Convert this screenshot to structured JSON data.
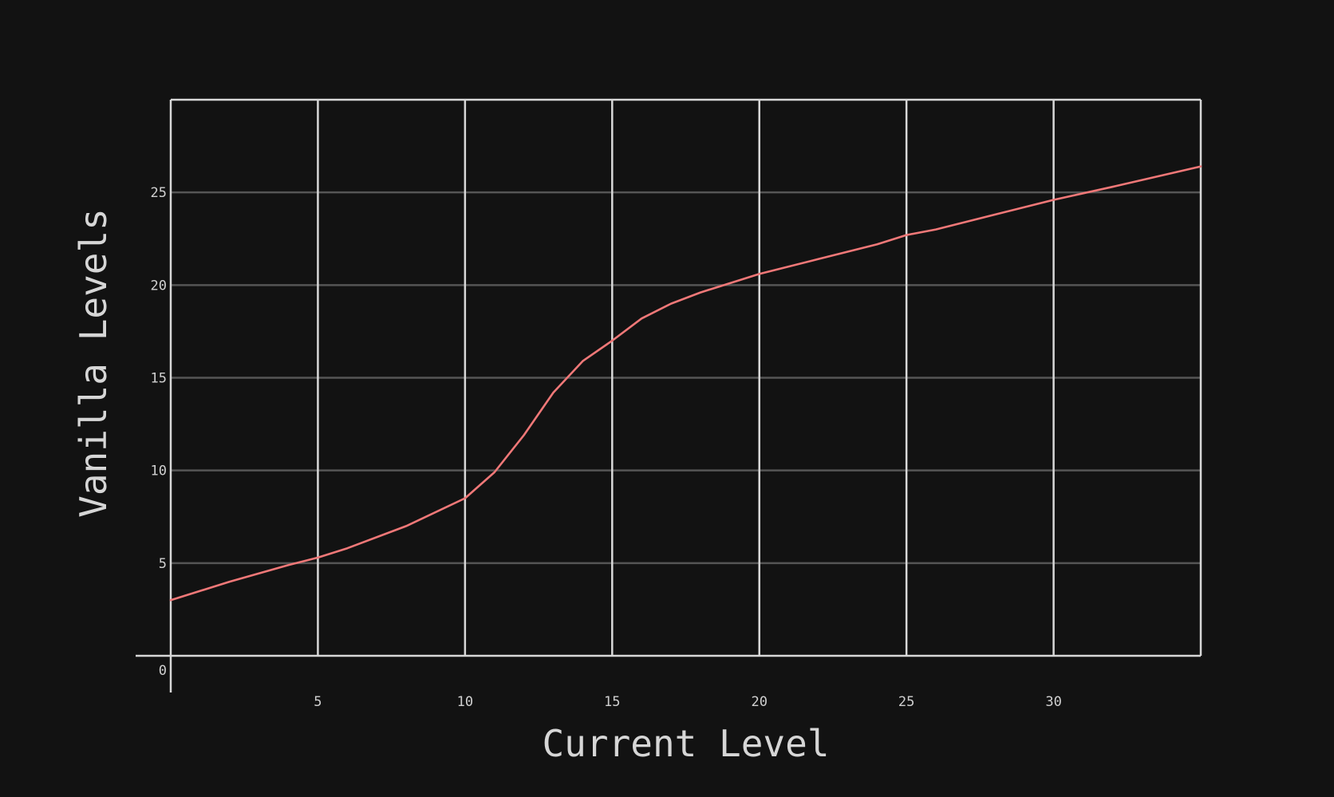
{
  "chart_data": {
    "type": "line",
    "title": "",
    "xlabel": "Current Level",
    "ylabel": "Vanilla Levels",
    "xlim": [
      0,
      35
    ],
    "ylim": [
      0,
      30
    ],
    "x_ticks": [
      5,
      10,
      15,
      20,
      25,
      30
    ],
    "y_ticks": [
      0,
      5,
      10,
      15,
      20,
      25
    ],
    "grid": true,
    "legend": "none",
    "series": [
      {
        "color": "#f07878",
        "x": [
          0,
          2,
          4,
          5,
          6,
          8,
          10,
          11,
          12,
          13,
          14,
          15,
          16,
          17,
          18,
          19,
          20,
          22,
          24,
          25,
          26,
          28,
          30,
          32,
          35
        ],
        "y": [
          3.0,
          4.0,
          4.9,
          5.3,
          5.8,
          7.0,
          8.5,
          9.9,
          11.9,
          14.2,
          15.9,
          17.0,
          18.2,
          19.0,
          19.6,
          20.1,
          20.6,
          21.4,
          22.2,
          22.7,
          23.0,
          23.8,
          24.6,
          25.3,
          26.4
        ]
      }
    ]
  },
  "colors": {
    "background": "#121212",
    "axis": "#d8d8d8",
    "grid_vertical": "#d8d8d8",
    "grid_horizontal": "#555555",
    "line": "#f07878"
  }
}
